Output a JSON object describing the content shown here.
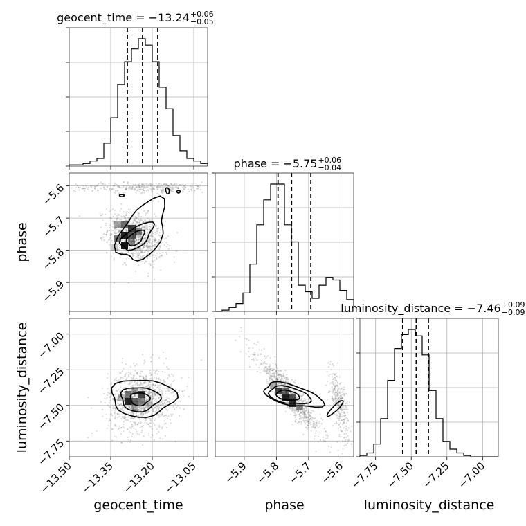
{
  "chart_data": {
    "type": "corner",
    "parameters": [
      {
        "name": "geocent_time",
        "label": "geocent_time",
        "median": "−13.24",
        "plus": "+0.06",
        "minus": "−0.05",
        "range": [
          -13.5,
          -13.0
        ],
        "ticks": [
          -13.5,
          -13.35,
          -13.2,
          -13.05
        ],
        "tick_labels": [
          "−13.50",
          "−13.35",
          "−13.20",
          "−13.05"
        ],
        "quantiles": [
          -13.29,
          -13.235,
          -13.18
        ]
      },
      {
        "name": "phase",
        "label": "phase",
        "median": "−5.75",
        "plus": "+0.06",
        "minus": "−0.04",
        "range": [
          -5.99,
          -5.56
        ],
        "ticks": [
          -5.9,
          -5.8,
          -5.7,
          -5.6
        ],
        "tick_labels": [
          "−5.9",
          "−5.8",
          "−5.7",
          "−5.6"
        ],
        "quantiles": [
          -5.795,
          -5.753,
          -5.693
        ]
      },
      {
        "name": "luminosity_distance",
        "label": "luminosity_distance",
        "median": "−7.46",
        "plus": "+0.09",
        "minus": "−0.09",
        "range": [
          -7.86,
          -6.89
        ],
        "ticks": [
          -7.75,
          -7.5,
          -7.25,
          -7.0
        ],
        "tick_labels": [
          "−7.75",
          "−7.50",
          "−7.25",
          "−7.00"
        ],
        "quantiles": [
          -7.56,
          -7.465,
          -7.38
        ]
      }
    ],
    "histograms": [
      {
        "parameter": "geocent_time",
        "edges_start": -13.5,
        "bin_width": 0.025,
        "counts": [
          0.01,
          0.01,
          0.02,
          0.04,
          0.06,
          0.18,
          0.38,
          0.64,
          0.82,
          0.92,
          1.0,
          0.95,
          0.82,
          0.62,
          0.45,
          0.24,
          0.12,
          0.06,
          0.04,
          0.02
        ]
      },
      {
        "parameter": "phase",
        "edges_start": -5.99,
        "bin_width": 0.0215,
        "counts": [
          0.0,
          0.01,
          0.03,
          0.06,
          0.14,
          0.36,
          0.66,
          0.85,
          0.97,
          0.97,
          0.66,
          0.53,
          0.2,
          0.15,
          0.1,
          0.2,
          0.26,
          0.24,
          0.16,
          0.09
        ]
      },
      {
        "parameter": "luminosity_distance",
        "edges_start": -7.86,
        "bin_width": 0.0485,
        "counts": [
          0.01,
          0.03,
          0.1,
          0.3,
          0.6,
          0.85,
          0.96,
          1.0,
          0.95,
          0.8,
          0.52,
          0.3,
          0.12,
          0.06,
          0.03,
          0.01,
          0.0,
          0.0,
          0.0,
          0.0
        ]
      }
    ],
    "grid": true
  }
}
